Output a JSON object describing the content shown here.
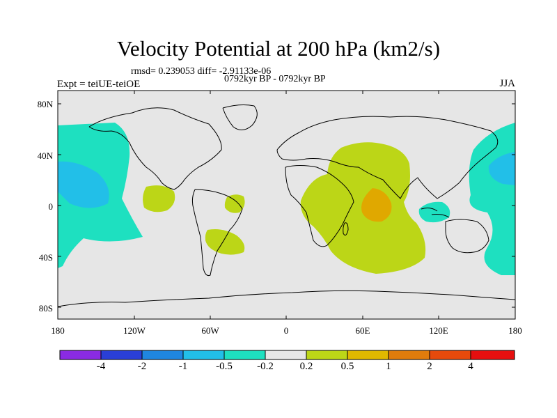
{
  "title": "Velocity Potential at 200 hPa (km2/s)",
  "stats": "rmsd= 0.239053 diff= -2.91133e-06",
  "experiment": "Expt = teiUE-teiOE",
  "period": "0792kyr BP - 0792kyr BP",
  "season": "JJA",
  "axes": {
    "y_ticks": [
      "80N",
      "40N",
      "0",
      "40S",
      "80S"
    ],
    "x_ticks": [
      "180",
      "120W",
      "60W",
      "0",
      "60E",
      "120E",
      "180"
    ]
  },
  "colorbar": {
    "colors": [
      "#8a2be2",
      "#2a3fd6",
      "#1f86e0",
      "#22bfe8",
      "#1ee0c0",
      "#e6e6e6",
      "#bcd617",
      "#e0b800",
      "#e07c0c",
      "#e64a0c",
      "#e60f0f"
    ],
    "labels": [
      "-4",
      "-2",
      "-1",
      "-0.5",
      "-0.2",
      "0.2",
      "0.5",
      "1",
      "2",
      "4"
    ]
  },
  "map_colors": {
    "background": "#e6e6e6",
    "negative_weak": "#1ee0c0",
    "negative_moderate": "#22bfe8",
    "positive_weak": "#bcd617",
    "positive_moderate": "#e0a800",
    "coastline": "#000000"
  }
}
